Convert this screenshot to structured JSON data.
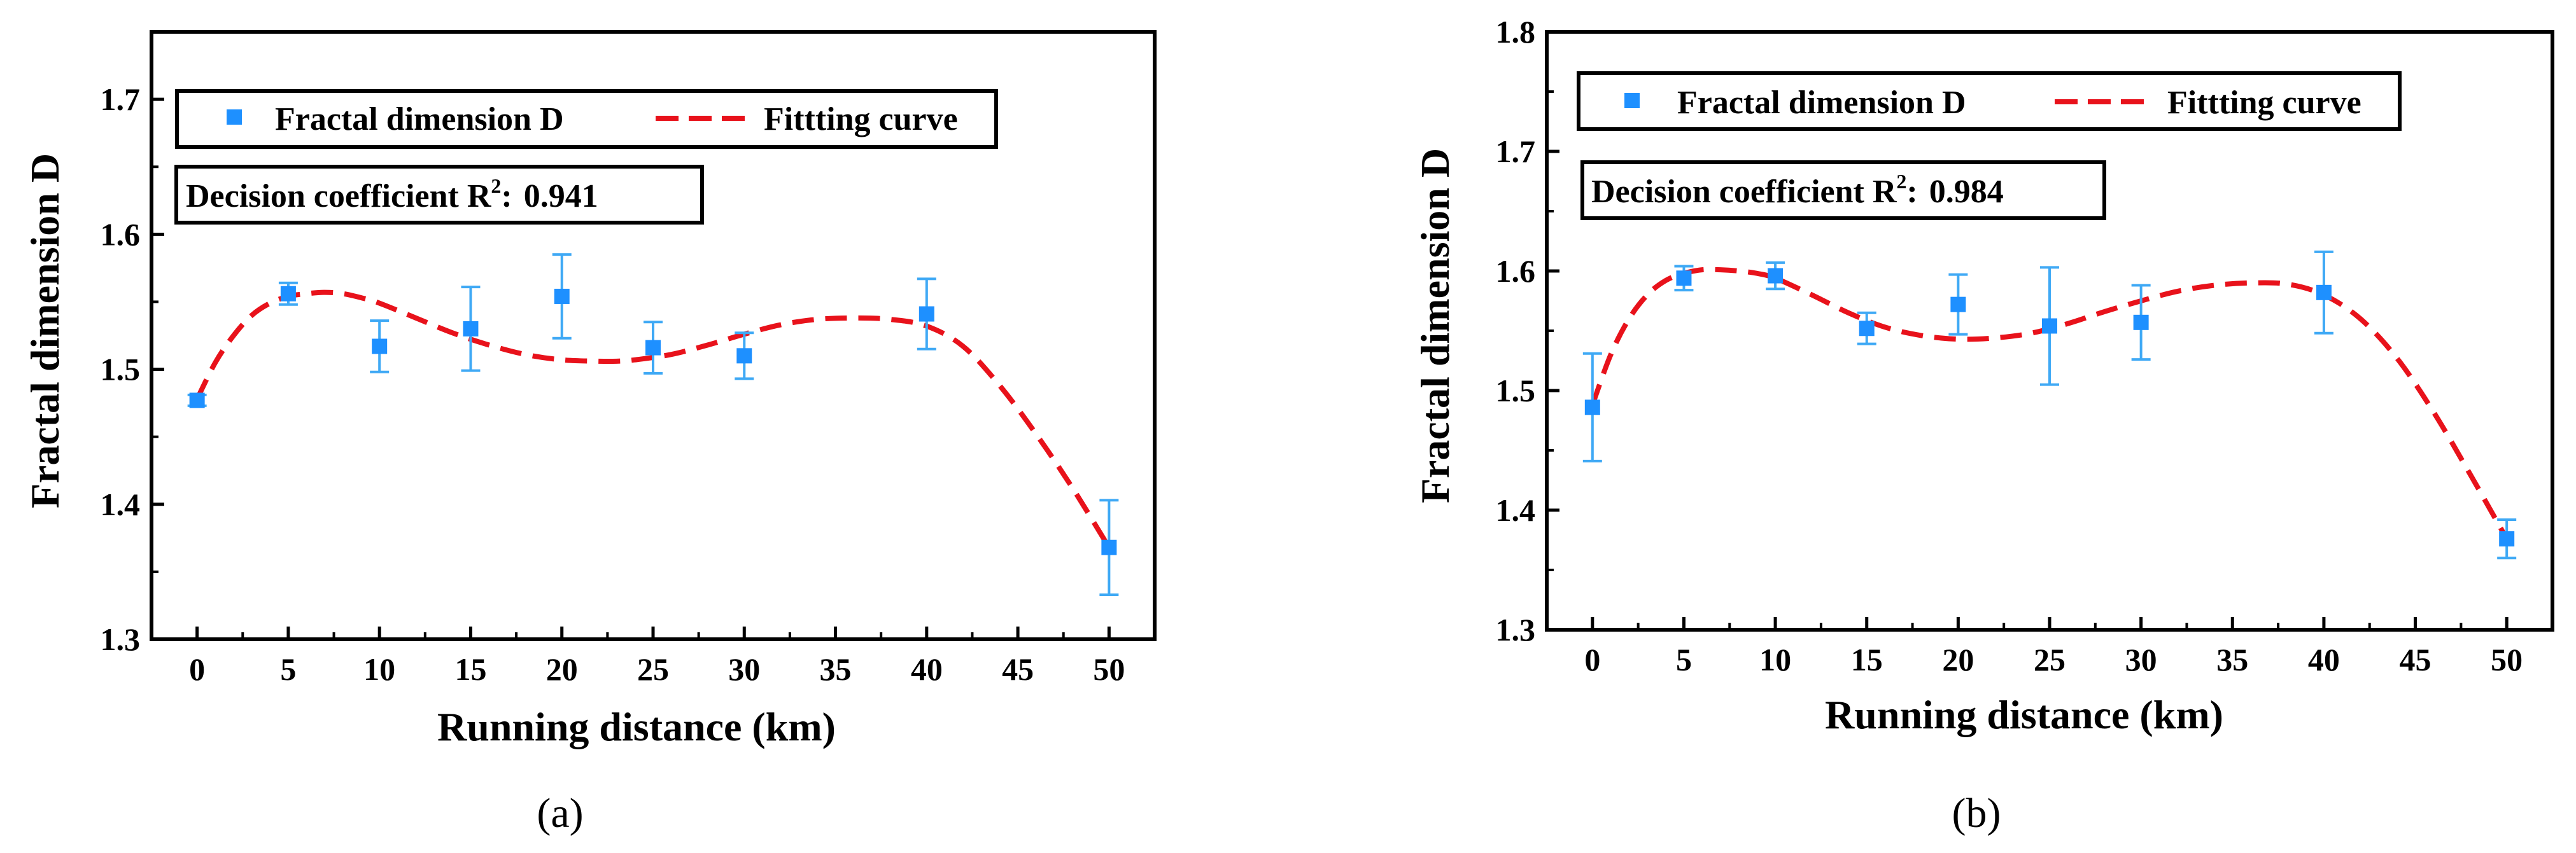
{
  "colors": {
    "marker": "#1e90ff",
    "errorbar": "#3fa9f5",
    "fit": "#e8121b",
    "axis": "#000000"
  },
  "chart_data": [
    {
      "id": "a",
      "caption": "(a)",
      "type": "scatter",
      "xlabel": "Running distance (km)",
      "ylabel": "Fractal dimension D",
      "xlim": [
        -2.5,
        52.5
      ],
      "ylim": [
        1.3,
        1.75
      ],
      "xticks": [
        0,
        5,
        10,
        15,
        20,
        25,
        30,
        35,
        40,
        45,
        50
      ],
      "yticks": [
        1.3,
        1.4,
        1.5,
        1.6,
        1.7
      ],
      "ytick_labels": [
        "1.3",
        "1.4",
        "1.5",
        "1.6",
        "1.7"
      ],
      "legend": {
        "marker_label": "Fractal dimension D",
        "curve_label": "Fitting curve",
        "curve_text": "Fittting curve"
      },
      "r2": {
        "prefix": "Decision coefficient R",
        "sup": "2",
        "sep": ":",
        "value": "0.941"
      },
      "series": [
        {
          "name": "Fractal dimension D",
          "x": [
            0,
            5,
            10,
            15,
            20,
            25,
            30,
            40,
            50
          ],
          "y": [
            1.477,
            1.556,
            1.517,
            1.53,
            1.554,
            1.516,
            1.51,
            1.541,
            1.368
          ],
          "yerr": [
            0.004,
            0.008,
            0.019,
            0.031,
            0.031,
            0.019,
            0.017,
            0.026,
            0.035
          ]
        }
      ],
      "fit": {
        "name": "Fitting curve",
        "x": [
          0,
          1,
          2,
          3,
          4,
          5,
          6,
          7,
          8,
          9,
          10,
          12,
          14,
          16,
          18,
          20,
          22,
          23,
          24,
          26,
          28,
          30,
          32,
          34,
          36,
          38,
          40,
          42,
          44,
          46,
          48,
          50
        ],
        "y": [
          1.478,
          1.505,
          1.525,
          1.54,
          1.549,
          1.554,
          1.556,
          1.557,
          1.556,
          1.553,
          1.549,
          1.538,
          1.527,
          1.518,
          1.511,
          1.507,
          1.506,
          1.506,
          1.507,
          1.511,
          1.518,
          1.526,
          1.533,
          1.537,
          1.538,
          1.537,
          1.532,
          1.517,
          1.488,
          1.452,
          1.412,
          1.368
        ]
      }
    },
    {
      "id": "b",
      "caption": "(b)",
      "type": "scatter",
      "xlabel": "Running distance (km)",
      "ylabel": "Fractal dimension D",
      "xlim": [
        -2.5,
        52.5
      ],
      "ylim": [
        1.3,
        1.8
      ],
      "xticks": [
        0,
        5,
        10,
        15,
        20,
        25,
        30,
        35,
        40,
        45,
        50
      ],
      "yticks": [
        1.3,
        1.4,
        1.5,
        1.6,
        1.7,
        1.8
      ],
      "ytick_labels": [
        "1.3",
        "1.4",
        "1.5",
        "1.6",
        "1.7",
        "1.8"
      ],
      "legend": {
        "marker_label": "Fractal dimension D",
        "curve_label": "Fitting curve",
        "curve_text": "Fittting curve"
      },
      "r2": {
        "prefix": "Decision coefficient R",
        "sup": "2",
        "sep": ":",
        "value": "0.984"
      },
      "series": [
        {
          "name": "Fractal dimension D",
          "x": [
            0,
            5,
            10,
            15,
            20,
            25,
            30,
            40,
            50
          ],
          "y": [
            1.486,
            1.594,
            1.596,
            1.552,
            1.572,
            1.554,
            1.557,
            1.582,
            1.376
          ],
          "yerr": [
            0.045,
            0.01,
            0.011,
            0.013,
            0.025,
            0.049,
            0.031,
            0.034,
            0.016
          ]
        }
      ],
      "fit": {
        "name": "Fitting curve",
        "x": [
          0,
          1,
          2,
          3,
          4,
          5,
          6,
          7,
          8,
          9,
          10,
          12,
          14,
          16,
          18,
          20,
          22,
          24,
          26,
          28,
          30,
          32,
          34,
          36,
          38,
          40,
          42,
          44,
          46,
          48,
          50
        ],
        "y": [
          1.488,
          1.53,
          1.56,
          1.58,
          1.592,
          1.598,
          1.601,
          1.601,
          1.6,
          1.598,
          1.594,
          1.58,
          1.565,
          1.553,
          1.546,
          1.543,
          1.544,
          1.548,
          1.556,
          1.566,
          1.575,
          1.583,
          1.588,
          1.59,
          1.589,
          1.58,
          1.56,
          1.527,
          1.482,
          1.43,
          1.376
        ]
      }
    }
  ]
}
